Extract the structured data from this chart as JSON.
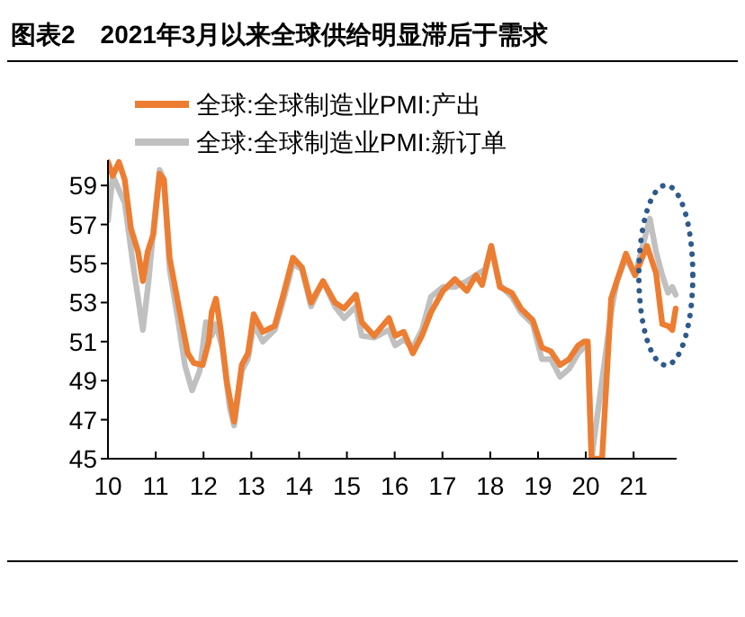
{
  "chart_data": {
    "type": "line",
    "title": "图表2　2021年3月以来全球供给明显滞后于需求",
    "series": [
      {
        "name": "全球:全球制造业PMI:产出",
        "color": "#ed7d31",
        "x": [
          2010.0,
          2010.1,
          2010.23,
          2010.35,
          2010.48,
          2010.63,
          2010.73,
          2010.83,
          2010.95,
          2011.08,
          2011.17,
          2011.29,
          2011.48,
          2011.67,
          2011.8,
          2011.98,
          2012.11,
          2012.17,
          2012.26,
          2012.36,
          2012.49,
          2012.64,
          2012.8,
          2012.93,
          2013.05,
          2013.24,
          2013.49,
          2013.68,
          2013.87,
          2014.06,
          2014.25,
          2014.5,
          2014.75,
          2014.94,
          2015.19,
          2015.31,
          2015.57,
          2015.88,
          2016.01,
          2016.19,
          2016.38,
          2016.57,
          2016.76,
          2017.01,
          2017.26,
          2017.51,
          2017.7,
          2017.83,
          2018.02,
          2018.2,
          2018.45,
          2018.64,
          2018.89,
          2019.08,
          2019.27,
          2019.46,
          2019.65,
          2019.84,
          2019.96,
          2020.04,
          2020.12,
          2020.34,
          2020.53,
          2020.65,
          2020.84,
          2021.03,
          2021.28,
          2021.47,
          2021.6,
          2021.72,
          2021.81,
          2021.88
        ],
        "values": [
          60.2,
          59.5,
          60.2,
          59.3,
          56.8,
          55.6,
          54.1,
          55.6,
          56.5,
          59.6,
          59.3,
          55.3,
          52.8,
          50.4,
          49.9,
          49.8,
          51.0,
          52.5,
          53.2,
          51.6,
          48.9,
          46.9,
          49.8,
          50.4,
          52.4,
          51.5,
          51.8,
          53.5,
          55.3,
          54.8,
          53.0,
          54.1,
          53.0,
          52.7,
          53.4,
          52.0,
          51.3,
          52.2,
          51.3,
          51.5,
          50.4,
          51.3,
          52.5,
          53.6,
          54.2,
          53.6,
          54.4,
          53.9,
          55.9,
          53.8,
          53.5,
          52.7,
          52.1,
          50.7,
          50.5,
          49.8,
          50.1,
          50.8,
          51.0,
          51.0,
          45,
          45,
          53.2,
          54.1,
          55.5,
          54.4,
          55.9,
          54.5,
          51.9,
          51.8,
          51.6,
          52.7
        ]
      },
      {
        "name": "全球:全球制造业PMI:新订单",
        "color": "#c0c0c0",
        "x": [
          2010.0,
          2010.1,
          2010.35,
          2010.54,
          2010.73,
          2010.85,
          2010.98,
          2011.08,
          2011.17,
          2011.29,
          2011.48,
          2011.61,
          2011.76,
          2011.92,
          2012.05,
          2012.17,
          2012.26,
          2012.39,
          2012.55,
          2012.64,
          2012.8,
          2012.93,
          2013.05,
          2013.24,
          2013.49,
          2013.68,
          2013.87,
          2014.06,
          2014.25,
          2014.5,
          2014.75,
          2014.94,
          2015.19,
          2015.31,
          2015.57,
          2015.88,
          2016.01,
          2016.19,
          2016.38,
          2016.57,
          2016.76,
          2017.01,
          2017.26,
          2017.51,
          2017.7,
          2017.89,
          2018.02,
          2018.2,
          2018.45,
          2018.64,
          2018.89,
          2019.08,
          2019.27,
          2019.46,
          2019.65,
          2019.84,
          2019.96,
          2020.04,
          2020.12,
          2020.53,
          2020.65,
          2020.84,
          2021.03,
          2021.34,
          2021.47,
          2021.6,
          2021.72,
          2021.81,
          2021.88
        ],
        "values": [
          57.2,
          59.5,
          58.1,
          54.7,
          51.6,
          54.1,
          57.5,
          59.8,
          59.3,
          54.7,
          51.9,
          49.8,
          48.5,
          49.5,
          52.0,
          51.3,
          51.9,
          50.7,
          47.6,
          46.7,
          49.5,
          50.1,
          51.9,
          51.0,
          51.6,
          53.2,
          55.0,
          54.7,
          52.8,
          54.1,
          52.8,
          52.2,
          52.8,
          51.3,
          51.2,
          51.6,
          50.8,
          51.1,
          50.7,
          51.6,
          53.3,
          53.8,
          53.8,
          54.1,
          54.4,
          54.7,
          55.9,
          53.9,
          53.3,
          52.5,
          51.9,
          50.1,
          50.1,
          49.2,
          49.6,
          50.4,
          50.7,
          50.8,
          45,
          52.5,
          54.1,
          55.3,
          54.4,
          57.3,
          55.6,
          54.4,
          53.5,
          53.8,
          53.4
        ]
      }
    ],
    "xlim": [
      2010,
      2021.9
    ],
    "xticks": [
      {
        "value": 2010,
        "label": "10"
      },
      {
        "value": 2011,
        "label": "11"
      },
      {
        "value": 2012,
        "label": "12"
      },
      {
        "value": 2013,
        "label": "13"
      },
      {
        "value": 2014,
        "label": "14"
      },
      {
        "value": 2015,
        "label": "15"
      },
      {
        "value": 2016,
        "label": "16"
      },
      {
        "value": 2017,
        "label": "17"
      },
      {
        "value": 2018,
        "label": "18"
      },
      {
        "value": 2019,
        "label": "19"
      },
      {
        "value": 2020,
        "label": "20"
      },
      {
        "value": 2021,
        "label": "21"
      }
    ],
    "ylim": [
      45,
      60.3
    ],
    "yticks": [
      45,
      47,
      49,
      51,
      53,
      55,
      57,
      59
    ],
    "grid": false,
    "legend": "top",
    "marker": "none",
    "line_style": "solid"
  }
}
